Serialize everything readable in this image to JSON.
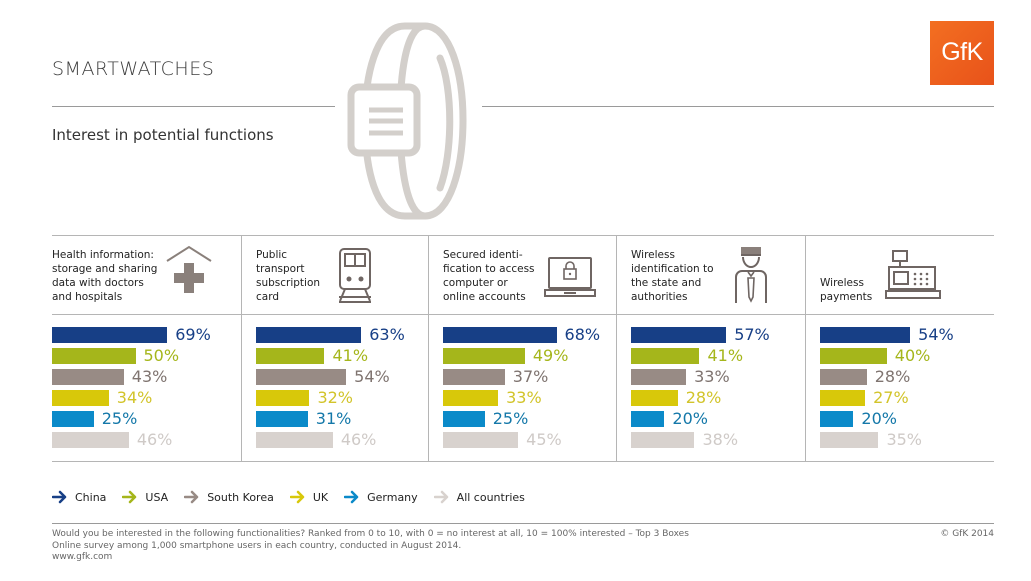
{
  "header": {
    "title": "SMARTWATCHES",
    "subtitle": "Interest in potential functions",
    "logo_text": "GfK",
    "brand_color": "#f36f21"
  },
  "chart_data": {
    "type": "bar",
    "orientation": "horizontal",
    "title": "SMARTWATCHES",
    "subtitle": "Interest in potential functions",
    "unit": "%",
    "xlim": [
      0,
      100
    ],
    "legend_position": "bottom-left",
    "categories": [
      {
        "label": "Health information: storage and sharing data with doctors and hospitals",
        "lines": [
          "Health information:",
          "storage and sharing",
          "data with doctors",
          "and hospitals"
        ],
        "icon": "hospital-cross-icon"
      },
      {
        "label": "Public transport subscription card",
        "lines": [
          "Public",
          "transport",
          "subscription",
          "card"
        ],
        "icon": "train-icon"
      },
      {
        "label": "Secured identification to access computer or online accounts",
        "lines": [
          "Secured identi-",
          "fication to access",
          "computer or",
          "online accounts"
        ],
        "icon": "laptop-lock-icon"
      },
      {
        "label": "Wireless identification to the state and authorities",
        "lines": [
          "Wireless",
          "identification to",
          "the state and",
          "authorities"
        ],
        "icon": "officer-icon"
      },
      {
        "label": "Wireless payments",
        "lines": [
          "Wireless",
          "payments"
        ],
        "icon": "cash-register-icon"
      }
    ],
    "series": [
      {
        "name": "China",
        "color": "#173f86",
        "label_color": "#173f86",
        "values": [
          69,
          63,
          68,
          57,
          54
        ]
      },
      {
        "name": "USA",
        "color": "#a5b61b",
        "label_color": "#a5b61b",
        "values": [
          50,
          41,
          49,
          41,
          40
        ]
      },
      {
        "name": "South Korea",
        "color": "#988b85",
        "label_color": "#7f7470",
        "values": [
          43,
          54,
          37,
          33,
          28
        ]
      },
      {
        "name": "UK",
        "color": "#d8c80a",
        "label_color": "#d2c42a",
        "values": [
          34,
          32,
          33,
          28,
          27
        ]
      },
      {
        "name": "Germany",
        "color": "#0b8ac9",
        "label_color": "#1478a9",
        "values": [
          25,
          31,
          25,
          20,
          20
        ]
      },
      {
        "name": "All countries",
        "color": "#d8d2ce",
        "label_color": "#cfcac7",
        "values": [
          46,
          46,
          45,
          38,
          35
        ]
      }
    ]
  },
  "footer": {
    "lines": [
      "Would you be interested in the following functionalities? Ranked from 0 to 10, with 0 = no interest at all, 10 = 100% interested – Top 3 Boxes",
      "Online survey among 1,000 smartphone users in each country, conducted in August 2014.",
      "www.gfk.com"
    ],
    "copyright": "© GfK 2014"
  }
}
